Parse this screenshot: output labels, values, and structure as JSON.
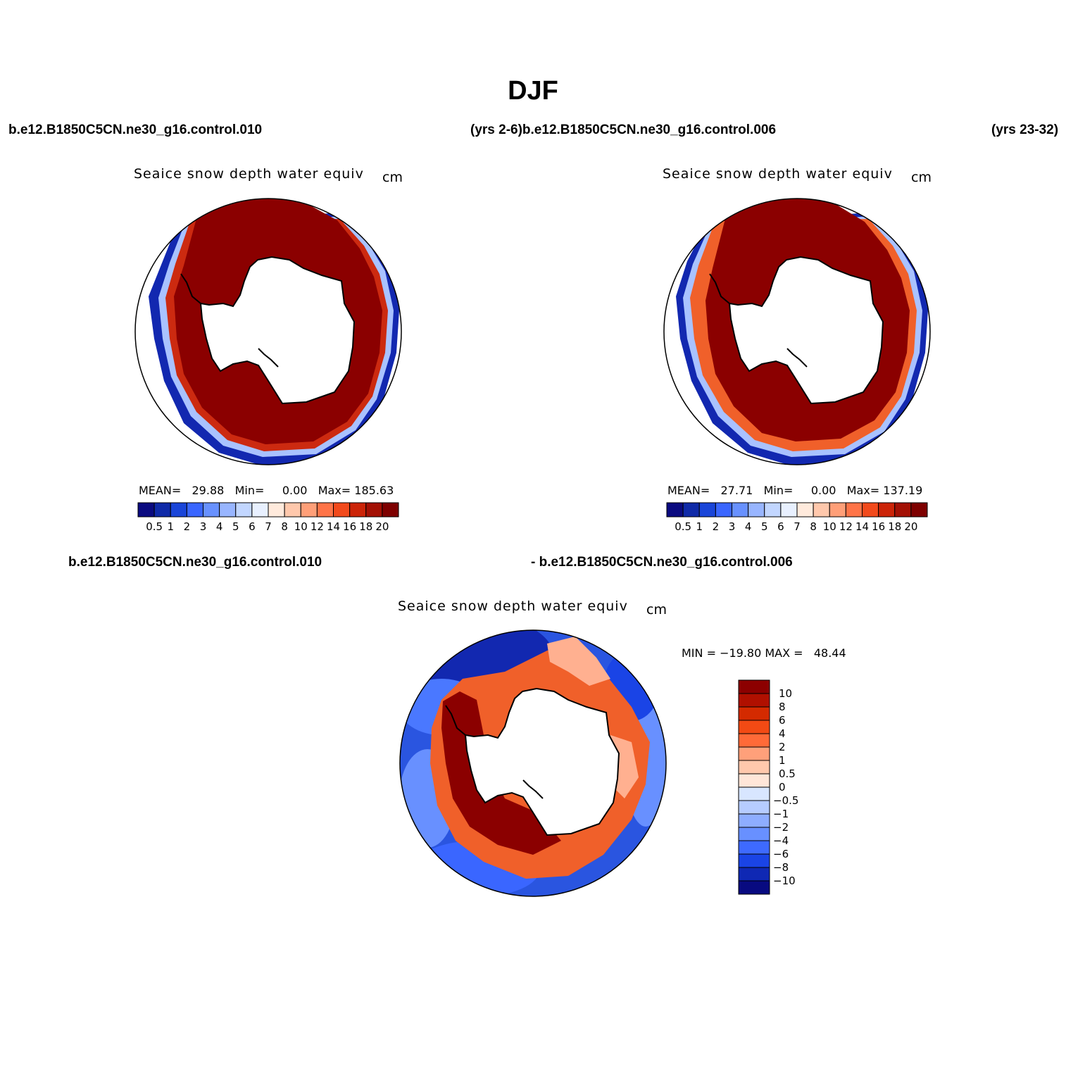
{
  "page": {
    "title": "DJF",
    "header_left": "b.e12.B1850C5CN.ne30_g16.control.010",
    "header_mid": "(yrs 2-6)b.e12.B1850C5CN.ne30_g16.control.006",
    "header_right": "(yrs 23-32)",
    "diff_left": "b.e12.B1850C5CN.ne30_g16.control.010",
    "diff_mid": "- b.e12.B1850C5CN.ne30_g16.control.006"
  },
  "panels": [
    {
      "variable": "Seaice snow depth water equiv",
      "units": "cm",
      "stats": {
        "mean_label": "MEAN=",
        "mean": "29.88",
        "min_label": "Min=",
        "min": "0.00",
        "max_label": "Max=",
        "max": "185.63"
      }
    },
    {
      "variable": "Seaice snow depth water equiv",
      "units": "cm",
      "stats": {
        "mean_label": "MEAN=",
        "mean": "27.71",
        "min_label": "Min=",
        "min": "0.00",
        "max_label": "Max=",
        "max": "137.19"
      }
    }
  ],
  "diff_panel": {
    "variable": "Seaice snow depth water equiv",
    "units": "cm",
    "minmax": "MIN = −19.80 MAX =   48.44"
  },
  "colorbar_abs": {
    "colors": [
      "#0a0a80",
      "#0f2aa8",
      "#1a45d8",
      "#3a66ff",
      "#6891ff",
      "#98b5ff",
      "#c2d6ff",
      "#e8f0ff",
      "#ffeadc",
      "#ffc8ac",
      "#ff9f78",
      "#ff7448",
      "#f24a1c",
      "#cc2408",
      "#a31004",
      "#7e0000"
    ],
    "ticks": [
      "0.5",
      "1",
      "2",
      "3",
      "4",
      "5",
      "6",
      "7",
      "8",
      "10",
      "12",
      "14",
      "16",
      "18",
      "20"
    ]
  },
  "colorbar_diff": {
    "colors_top_to_bottom": [
      "#8c0000",
      "#b01000",
      "#d42a00",
      "#f24a14",
      "#ff6a38",
      "#ffa07a",
      "#ffc8ac",
      "#ffe6d8",
      "#d8e6ff",
      "#b6ccff",
      "#8eadff",
      "#6890ff",
      "#3e6aff",
      "#1a44e6",
      "#0f28b4",
      "#080a80"
    ],
    "ticks_top_to_bottom": [
      "10",
      "8",
      "6",
      "4",
      "2",
      "1",
      "0.5",
      "0",
      "−0.5",
      "−1",
      "−2",
      "−4",
      "−6",
      "−8",
      "−10"
    ]
  },
  "map_colors": {
    "deep_red": "#8b0000",
    "mid_red": "#cc2a10",
    "orange": "#f0602a",
    "salmon": "#ffb090",
    "light_blue": "#a9c2ff",
    "blue": "#3a66ff",
    "dark_blue": "#1228b0",
    "navy": "#0a0a80"
  }
}
